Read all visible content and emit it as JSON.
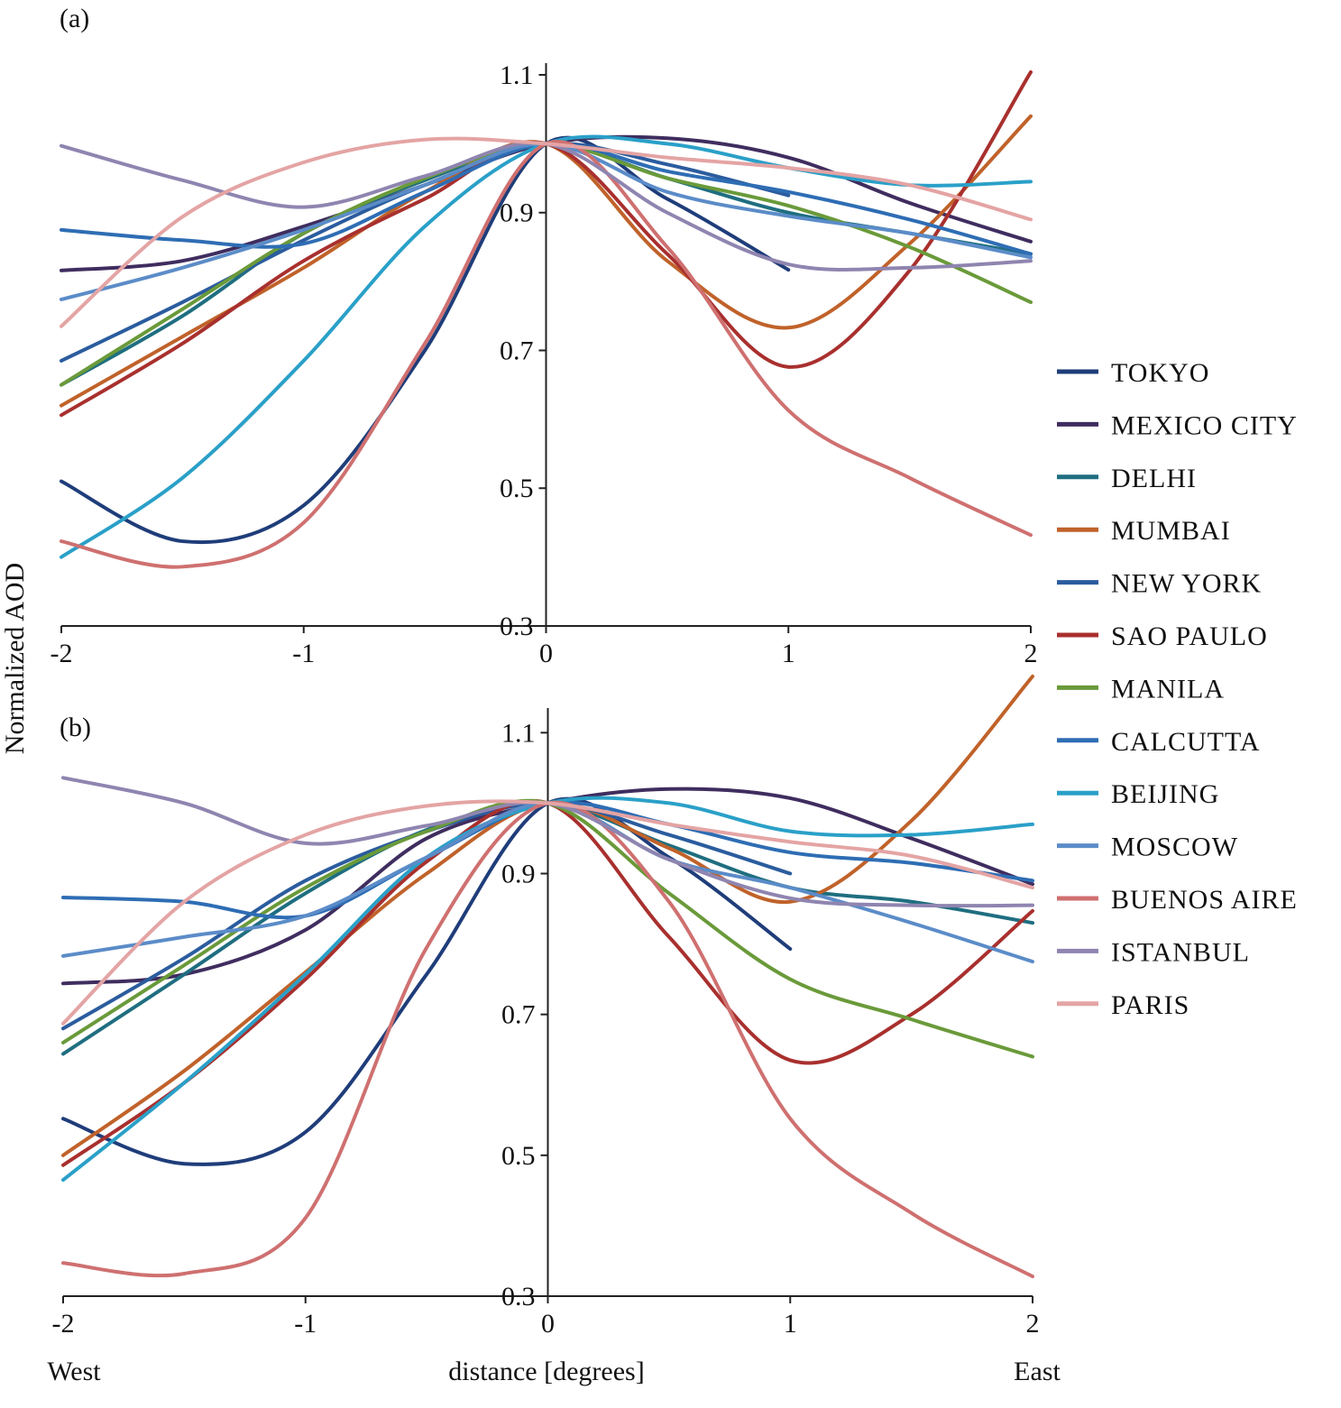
{
  "chart_data": [
    {
      "type": "line",
      "panel_label": "(a)",
      "y_label": "Normalized AOD",
      "x": [
        -2,
        -1.5,
        -1,
        -0.5,
        0,
        0.5,
        1,
        1.5,
        2
      ],
      "xlim": [
        -2,
        2
      ],
      "xticks": [
        -2,
        -1,
        0,
        1,
        2
      ],
      "ylim": [
        0.3,
        1.117
      ],
      "yticks": [
        0.3,
        0.5,
        0.7,
        0.9,
        1.1
      ],
      "series": [
        {
          "name": "TOKYO",
          "color": "#1f3d7a",
          "values": [
            0.51,
            0.423,
            0.475,
            0.7,
            1.0,
            0.92,
            0.817,
            null,
            null
          ]
        },
        {
          "name": "MEXICO CITY",
          "color": "#3f2d5f",
          "values": [
            0.816,
            0.83,
            0.88,
            0.94,
            1.0,
            1.008,
            0.98,
            0.914,
            0.858
          ]
        },
        {
          "name": "DELHI",
          "color": "#1f6e80",
          "values": [
            0.65,
            0.75,
            0.87,
            0.947,
            1.0,
            0.95,
            0.9,
            0.87,
            0.84
          ]
        },
        {
          "name": "MUMBAI",
          "color": "#c0622a",
          "values": [
            0.62,
            0.72,
            0.82,
            0.93,
            1.0,
            0.83,
            0.733,
            0.855,
            1.04
          ]
        },
        {
          "name": "NEW YORK",
          "color": "#2b5c9e",
          "values": [
            0.685,
            0.77,
            0.86,
            0.94,
            1.0,
            0.97,
            0.925,
            null,
            null
          ]
        },
        {
          "name": "SAO PAULO",
          "color": "#a8302e",
          "values": [
            0.606,
            0.71,
            0.83,
            0.92,
            1.0,
            0.84,
            0.676,
            0.816,
            1.104
          ]
        },
        {
          "name": "MANILA",
          "color": "#6a9a3a",
          "values": [
            0.65,
            0.76,
            0.87,
            0.95,
            1.0,
            0.95,
            0.91,
            0.85,
            0.77
          ]
        },
        {
          "name": "CALCUTTA",
          "color": "#2e6db4",
          "values": [
            0.875,
            0.86,
            0.855,
            0.93,
            1.0,
            0.96,
            0.93,
            0.89,
            0.84
          ]
        },
        {
          "name": "BEIJING",
          "color": "#2aa0c8",
          "values": [
            0.4,
            0.515,
            0.685,
            0.88,
            1.0,
            1.0,
            0.965,
            0.94,
            0.945
          ]
        },
        {
          "name": "MOSCOW",
          "color": "#5b8cc8",
          "values": [
            0.774,
            0.82,
            0.875,
            0.94,
            1.0,
            0.93,
            0.895,
            0.87,
            0.835
          ]
        },
        {
          "name": "BUENOS AIRE",
          "color": "#cf7070",
          "values": [
            0.423,
            0.386,
            0.45,
            0.71,
            1.0,
            0.85,
            0.613,
            0.515,
            0.432
          ]
        },
        {
          "name": "ISTANBUL",
          "color": "#8f85b0",
          "values": [
            0.997,
            0.947,
            0.908,
            0.953,
            1.0,
            0.9,
            0.825,
            0.82,
            0.83
          ]
        },
        {
          "name": "PARIS",
          "color": "#e4a4a4",
          "values": [
            0.735,
            0.894,
            0.973,
            1.006,
            1.0,
            0.98,
            0.965,
            0.94,
            0.89
          ]
        }
      ]
    },
    {
      "type": "line",
      "panel_label": "(b)",
      "x_label": "distance [degrees]",
      "x_left_label": "West",
      "x_right_label": "East",
      "x": [
        -2,
        -1.5,
        -1,
        -0.5,
        0,
        0.5,
        1,
        1.5,
        2
      ],
      "xlim": [
        -2,
        2
      ],
      "xticks": [
        -2,
        -1,
        0,
        1,
        2
      ],
      "ylim": [
        0.3,
        1.135
      ],
      "yticks": [
        0.3,
        0.5,
        0.7,
        0.9,
        1.1
      ],
      "series": [
        {
          "color": "#1f3d7a",
          "values": [
            0.552,
            0.488,
            0.533,
            0.757,
            1.0,
            0.923,
            0.793,
            null,
            null
          ]
        },
        {
          "color": "#3f2d5f",
          "values": [
            0.744,
            0.757,
            0.82,
            0.95,
            1.0,
            1.02,
            1.007,
            0.95,
            0.885
          ]
        },
        {
          "color": "#1f6e80",
          "values": [
            0.644,
            0.757,
            0.872,
            0.962,
            1.0,
            0.94,
            0.88,
            0.86,
            0.83
          ]
        },
        {
          "color": "#c0622a",
          "values": [
            0.5,
            0.62,
            0.76,
            0.9,
            1.0,
            0.936,
            0.86,
            0.975,
            1.18
          ]
        },
        {
          "color": "#2b5c9e",
          "values": [
            0.68,
            0.78,
            0.89,
            0.96,
            1.0,
            0.955,
            0.9,
            null,
            null
          ]
        },
        {
          "color": "#a8302e",
          "values": [
            0.486,
            0.603,
            0.75,
            0.917,
            1.0,
            0.81,
            0.635,
            0.7,
            0.847
          ]
        },
        {
          "color": "#6a9a3a",
          "values": [
            0.66,
            0.77,
            0.88,
            0.96,
            1.0,
            0.872,
            0.75,
            0.693,
            0.64
          ]
        },
        {
          "color": "#2e6db4",
          "values": [
            0.866,
            0.86,
            0.84,
            0.923,
            1.0,
            0.97,
            0.93,
            0.915,
            0.89
          ]
        },
        {
          "color": "#2aa0c8",
          "values": [
            0.465,
            0.603,
            0.757,
            0.923,
            1.0,
            1.0,
            0.96,
            0.955,
            0.97
          ]
        },
        {
          "color": "#5b8cc8",
          "values": [
            0.783,
            0.81,
            0.84,
            0.923,
            1.0,
            0.92,
            0.88,
            0.83,
            0.775
          ]
        },
        {
          "color": "#cf7070",
          "values": [
            0.347,
            0.332,
            0.411,
            0.795,
            1.0,
            0.86,
            0.552,
            0.418,
            0.328
          ]
        },
        {
          "color": "#8f85b0",
          "values": [
            1.036,
            1.0,
            0.943,
            0.968,
            1.0,
            0.92,
            0.865,
            0.855,
            0.855
          ]
        },
        {
          "color": "#e4a4a4",
          "values": [
            0.687,
            0.86,
            0.955,
            0.996,
            1.0,
            0.97,
            0.945,
            0.925,
            0.88
          ]
        }
      ]
    }
  ]
}
